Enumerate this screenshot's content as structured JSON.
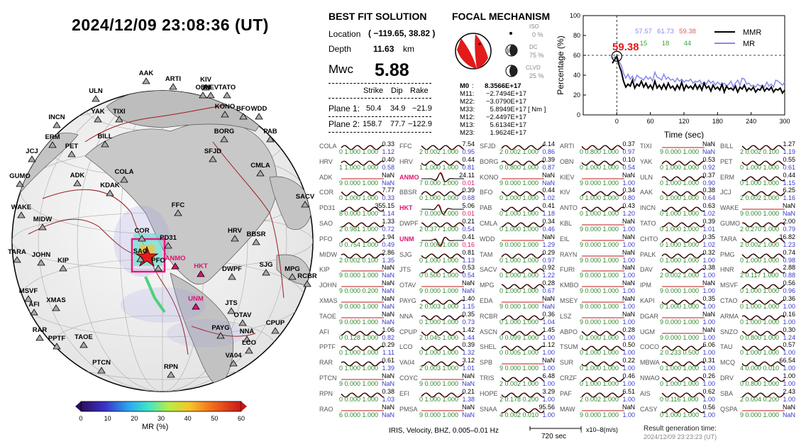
{
  "title": "2024/12/09  23:08:36 (UT)",
  "colorbar": {
    "label": "MR (%)",
    "ticks": [
      "0",
      "10",
      "20",
      "30",
      "40",
      "50",
      "60"
    ]
  },
  "stations_map": [
    "AAK",
    "ARTI",
    "KIV",
    "OBN",
    "KIEV",
    "TATO",
    "ULN",
    "KONO",
    "BFO",
    "WDD",
    "YAK",
    "TIXI",
    "INCN",
    "ERM",
    "BORG",
    "PAB",
    "BILL",
    "PET",
    "JCJ",
    "SFJD",
    "CMLA",
    "GUMO",
    "ADK",
    "COLA",
    "KDAK",
    "SACV",
    "WAKE",
    "MIDW",
    "FFC",
    "HRV",
    "BBSR",
    "COR",
    "PD31",
    "TARA",
    "JOHN",
    "KIP",
    "SAO",
    "PFO",
    "ANMO",
    "HKT",
    "DWPF",
    "SJG",
    "RCBR",
    "MPG",
    "MSVF",
    "AFI",
    "XMAS",
    "UNM",
    "JTS",
    "OTAV",
    "CPUP",
    "RAR",
    "PPTF",
    "TAOE",
    "PAYG",
    "NNA",
    "LCO",
    "VA04",
    "PTCN",
    "RPN"
  ],
  "highlight_stations": [
    "ANMO",
    "HKT",
    "UNM"
  ],
  "solution": {
    "header": "BEST FIT SOLUTION",
    "location_label": "Location",
    "location_value": "( −119.65,  38.82 )",
    "depth_label": "Depth",
    "depth_value": "11.63",
    "depth_unit": "km",
    "mw_label": "Mwc",
    "mw_value": "5.88",
    "cols": [
      "Strike",
      "Dip",
      "Rake"
    ],
    "plane1_label": "Plane 1:",
    "plane1": [
      "50.4",
      "34.9",
      "−21.9"
    ],
    "plane2_label": "Plane 2:",
    "plane2": [
      "158.7",
      "77.7",
      "−122.9"
    ]
  },
  "focal": {
    "header": "FOCAL MECHANISM",
    "iso_label": "ISO",
    "iso_val": "0 %",
    "dc_label": "DC",
    "dc_val": "75 %",
    "clvd_label": "CLVD",
    "clvd_val": "25 %",
    "m0_label": "M0",
    "m0": "8.3566E+17",
    "moments": [
      {
        "k": "M11:",
        "v": "−2.7494E+17"
      },
      {
        "k": "M22:",
        "v": "−3.0790E+17"
      },
      {
        "k": "M33:",
        "v": "5.8949E+17"
      },
      {
        "k": "M12:",
        "v": "−2.4497E+17"
      },
      {
        "k": "M13:",
        "v": "5.6134E+17"
      },
      {
        "k": "M23:",
        "v": "1.9624E+17"
      }
    ],
    "unit": "[ Nm ]"
  },
  "chart_data": {
    "type": "line",
    "xlabel": "Time (sec)",
    "ylabel": "Percentage (%)",
    "xlim": [
      -60,
      300
    ],
    "ylim": [
      0,
      100
    ],
    "xticks": [
      0,
      60,
      120,
      180,
      240,
      300
    ],
    "yticks": [
      0,
      20,
      40,
      60,
      80,
      100
    ],
    "threshold": 60,
    "peak_label": "59.38",
    "top_values": [
      {
        "v": "57.57",
        "color": "#8888ee"
      },
      {
        "v": "61.73",
        "color": "#8888ee"
      },
      {
        "v": "59.38",
        "color": "#ee5555"
      }
    ],
    "bottom_values": [
      "15",
      "18",
      "44"
    ],
    "x": [
      -8,
      0,
      4,
      8,
      12,
      16,
      20,
      24,
      28,
      32,
      36,
      40,
      44,
      48,
      52,
      56,
      60,
      64,
      68,
      72,
      76,
      80,
      84,
      88,
      92,
      96,
      100,
      104,
      108,
      112,
      116,
      120,
      124,
      128,
      132,
      136,
      140,
      144,
      148,
      152,
      156,
      160,
      164,
      168,
      172,
      176,
      180,
      184,
      188,
      192,
      196,
      200,
      204,
      208,
      212,
      216,
      220,
      224,
      228,
      232,
      236,
      240,
      244,
      248,
      252,
      256,
      260,
      264,
      268,
      272,
      276,
      280,
      284,
      288,
      292,
      296,
      300
    ],
    "series": [
      {
        "name": "MMR",
        "color": "#000000",
        "values": [
          52,
          59,
          50,
          44,
          34,
          28,
          31,
          29,
          35,
          27,
          31,
          29,
          34,
          28,
          32,
          27,
          30,
          26,
          34,
          27,
          30,
          26,
          31,
          26,
          32,
          27,
          29,
          25,
          30,
          26,
          33,
          25,
          30,
          27,
          29,
          26,
          31,
          26,
          30,
          25,
          32,
          27,
          29,
          24,
          30,
          26,
          28,
          25,
          31,
          23,
          29,
          26,
          27,
          25,
          29,
          23,
          28,
          26,
          30,
          24,
          27,
          25,
          28,
          23,
          26,
          25,
          29,
          24,
          27,
          25,
          28,
          23,
          26,
          25,
          27,
          22,
          25
        ]
      },
      {
        "name": "MR",
        "color": "#8888ee",
        "values": [
          57,
          59,
          54,
          50,
          42,
          37,
          41,
          36,
          39,
          34,
          40,
          38,
          37,
          35,
          39,
          36,
          38,
          34,
          43,
          38,
          37,
          35,
          41,
          36,
          38,
          35,
          36,
          33,
          37,
          34,
          36,
          33,
          35,
          34,
          36,
          32,
          34,
          33,
          35,
          31,
          33,
          31,
          35,
          32,
          34,
          30,
          33,
          31,
          30,
          32,
          29,
          31,
          34,
          28,
          32,
          35,
          30,
          37,
          36,
          31,
          32,
          29,
          30,
          28,
          31,
          29,
          30,
          28,
          33,
          29,
          31,
          28,
          35,
          34,
          32,
          30,
          33
        ]
      }
    ]
  },
  "traces": [
    [
      {
        "c": "COLA",
        "t": "0.33",
        "l": "0  1.000  1.000",
        "r": "1.12"
      },
      {
        "c": "HRV",
        "t": "0.40",
        "l": "1  1.000  1.000",
        "r": "0.58"
      },
      {
        "c": "ADK",
        "t": "NaN",
        "l": "9  0.000  1.000",
        "r": "NaN"
      },
      {
        "c": "COR",
        "t": "7.77",
        "l": "0  1.000  1.000",
        "r": "0.33"
      },
      {
        "c": "PD31",
        "t": "355.15",
        "l": "8  0.000  1.000",
        "r": "1.14"
      },
      {
        "c": "SAO",
        "t": "1.33",
        "l": "2  0.981  1.000",
        "r": "0.72"
      },
      {
        "c": "PFO",
        "t": "1.94",
        "l": "0  0.754  1.000",
        "r": "0.49"
      },
      {
        "c": "MIDW",
        "t": "2.86",
        "l": "2  0.002  0.100",
        "r": "1.35"
      },
      {
        "c": "KIP",
        "t": "NaN",
        "l": "9  0.000  1.000",
        "r": "NaN"
      },
      {
        "c": "JOHN",
        "t": "NaN",
        "l": "9  0.000  0.200",
        "r": "NaN"
      },
      {
        "c": "XMAS",
        "t": "NaN",
        "l": "9  0.000  1.000",
        "r": "NaN"
      },
      {
        "c": "TAOE",
        "t": "NaN",
        "l": "9  0.000  1.000",
        "r": "NaN"
      },
      {
        "c": "AFI",
        "t": "1.06",
        "l": "0  0.128  1.000",
        "r": "0.82"
      },
      {
        "c": "PPTF",
        "t": "0.29",
        "l": "0  1.000  1.000",
        "r": "1.11"
      },
      {
        "c": "RAR",
        "t": "0.61",
        "l": "0  1.000  1.000",
        "r": "1.39"
      },
      {
        "c": "PTCN",
        "t": "NaN",
        "l": "9  0.000  1.000",
        "r": "NaN"
      },
      {
        "c": "RPN",
        "t": "0.38",
        "l": "0  0.000  1.000",
        "r": "1.03"
      },
      {
        "c": "RAO",
        "t": "NaN",
        "l": "6  0.000  1.000",
        "r": "NaN"
      }
    ],
    [
      {
        "c": "FFC",
        "t": "7.54",
        "l": "2  0.002  1.000",
        "r": "0.95"
      },
      {
        "c": "HRV",
        "t": "0.44",
        "l": "1  1.000  1.000",
        "r": "0.81"
      },
      {
        "c": "ANMO",
        "t": "24.11",
        "l": "7  0.000  1.000",
        "r": "0.01"
      },
      {
        "c": "BBSR",
        "t": "0.39",
        "l": "0  1.000  1.000",
        "r": "0.68"
      },
      {
        "c": "HKT",
        "t": "5.06",
        "l": "7  0.000  1.000",
        "r": "0.01"
      },
      {
        "c": "DWPF",
        "t": "0.21",
        "l": "2  0.377  1.000",
        "r": "0.54"
      },
      {
        "c": "UNM",
        "t": "0.41",
        "l": "7  0.000  1.000",
        "r": "0.16"
      },
      {
        "c": "SJG",
        "t": "0.81",
        "l": "0  1.000  1.000",
        "r": "1.13"
      },
      {
        "c": "JTS",
        "t": "0.53",
        "l": "0  0.500  1.000",
        "r": "0.54"
      },
      {
        "c": "OTAV",
        "t": "NaN",
        "l": "9  0.000  1.000",
        "r": "NaN"
      },
      {
        "c": "PAYG",
        "t": "1.40",
        "l": "2  0.003  1.000",
        "r": "1.15"
      },
      {
        "c": "NNA",
        "t": "0.35",
        "l": "0  1.000  1.000",
        "r": "0.73"
      },
      {
        "c": "CPUP",
        "t": "1.42",
        "l": "2  0.045  1.000",
        "r": "1.44"
      },
      {
        "c": "LCO",
        "t": "0.39",
        "l": "0  1.000  1.000",
        "r": "1.32"
      },
      {
        "c": "VA04",
        "t": "3.12",
        "l": "2  0.003  1.000",
        "r": "1.01"
      },
      {
        "c": "COYC",
        "t": "NaN",
        "l": "9  0.000  1.000",
        "r": "NaN"
      },
      {
        "c": "EFI",
        "t": "0.21",
        "l": "0  1.000  1.000",
        "r": "1.38"
      },
      {
        "c": "PMSA",
        "t": "NaN",
        "l": "9  0.000  1.000",
        "r": "NaN"
      }
    ],
    [
      {
        "c": "SFJD",
        "t": "4.14",
        "l": "2  0.002  1.000",
        "r": "0.86"
      },
      {
        "c": "BORG",
        "t": "0.39",
        "l": "0  0.800  1.000",
        "r": "0.87"
      },
      {
        "c": "KONO",
        "t": "NaN",
        "l": "9  0.000  1.000",
        "r": "NaN"
      },
      {
        "c": "BFO",
        "t": "0.44",
        "l": "0  1.000  1.000",
        "r": "1.02"
      },
      {
        "c": "PAB",
        "t": "0.41",
        "l": "0  1.000  1.000",
        "r": "1.18"
      },
      {
        "c": "CMLA",
        "t": "0.34",
        "l": "0  1.000  1.000",
        "r": "0.46"
      },
      {
        "c": "WDD",
        "t": "NaN",
        "l": "9  0.000  1.000",
        "r": "1.29"
      },
      {
        "c": "TAM",
        "t": "0.29",
        "l": "0  1.000  1.000",
        "r": "0.97"
      },
      {
        "c": "SACV",
        "t": "0.92",
        "l": "0  1.000  1.000",
        "r": "1.22"
      },
      {
        "c": "MPG",
        "t": "0.28",
        "l": "0  1.000  1.000",
        "r": "0.67"
      },
      {
        "c": "EDA",
        "t": "NaN",
        "l": "9  0.000  1.000",
        "r": "NaN"
      },
      {
        "c": "RCBR",
        "t": "0.36",
        "l": "0  1.000  1.000",
        "r": "1.04"
      },
      {
        "c": "ASCN",
        "t": "1.45",
        "l": "0  0.099  1.000",
        "r": "1.00"
      },
      {
        "c": "SHEL",
        "t": "1.12",
        "l": "0  0.005  1.000",
        "r": "1.00"
      },
      {
        "c": "SPB",
        "t": "NaN",
        "l": "9  0.000  1.000",
        "r": "1.00"
      },
      {
        "c": "TRIS",
        "t": "6.48",
        "l": "2  0.002  1.000",
        "r": "1.00"
      },
      {
        "c": "HOPE",
        "t": "3.29",
        "l": "2  0.178  0.200",
        "r": "1.00"
      },
      {
        "c": "SNAA",
        "t": "95.56",
        "l": "4  0.002  0.010",
        "r": "1.00"
      }
    ],
    [
      {
        "c": "ARTI",
        "t": "0.37",
        "l": "0  0.800  1.000",
        "r": "0.97"
      },
      {
        "c": "OBN",
        "t": "0.10",
        "l": "0  1.000  1.000",
        "r": "0.54"
      },
      {
        "c": "KIEV",
        "t": "NaN",
        "l": "9  0.000  1.000",
        "r": "1.00"
      },
      {
        "c": "KIV",
        "t": "0.34",
        "l": "0  1.000  1.000",
        "r": "0.80"
      },
      {
        "c": "ANTO",
        "t": "0.43",
        "l": "0  1.000  1.000",
        "r": "1.20"
      },
      {
        "c": "KBL",
        "t": "NaN",
        "l": "9  0.000  1.000",
        "r": "1.00"
      },
      {
        "c": "EIL",
        "t": "NaN",
        "l": "9  0.000  1.000",
        "r": "1.00"
      },
      {
        "c": "RAYN",
        "t": "NaN",
        "l": "9  0.000  1.000",
        "r": "1.00"
      },
      {
        "c": "FURI",
        "t": "NaN",
        "l": "9  0.000  1.000",
        "r": "1.00"
      },
      {
        "c": "KMBO",
        "t": "NaN",
        "l": "9  0.000  1.000",
        "r": "1.00"
      },
      {
        "c": "MSEY",
        "t": "NaN",
        "l": "9  0.000  1.000",
        "r": "1.00"
      },
      {
        "c": "LSZ",
        "t": "NaN",
        "l": "9  0.000  1.000",
        "r": "1.00"
      },
      {
        "c": "ABPO",
        "t": "0.28",
        "l": "0  1.000  1.000",
        "r": "1.00"
      },
      {
        "c": "TSUM",
        "t": "0.50",
        "l": "0  1.000  1.000",
        "r": "1.00"
      },
      {
        "c": "SUR",
        "t": "0.22",
        "l": "0  1.000  1.000",
        "r": "1.00"
      },
      {
        "c": "CRZF",
        "t": "0.46",
        "l": "0  1.000  1.000",
        "r": "1.00"
      },
      {
        "c": "PAF",
        "t": "6.51",
        "l": "2  0.002  1.000",
        "r": "1.00"
      },
      {
        "c": "MAW",
        "t": "NaN",
        "l": "9  0.000  1.000",
        "r": "1.00"
      }
    ],
    [
      {
        "c": "TIXI",
        "t": "NaN",
        "l": "9  0.000  1.000",
        "r": "NaN"
      },
      {
        "c": "YAK",
        "t": "0.53",
        "l": "0  1.000  1.000",
        "r": "0.92"
      },
      {
        "c": "ULN",
        "t": "0.37",
        "l": "0  1.000  1.000",
        "r": "0.90"
      },
      {
        "c": "AAK",
        "t": "0.38",
        "l": "0  1.000  1.000",
        "r": "0.64"
      },
      {
        "c": "INCN",
        "t": "0.63",
        "l": "0  1.000  1.000",
        "r": "1.02"
      },
      {
        "c": "TATO",
        "t": "0.39",
        "l": "0  1.000  1.000",
        "r": "1.01"
      },
      {
        "c": "CHTO",
        "t": "0.35",
        "l": "0  1.000  1.000",
        "r": "1.02"
      },
      {
        "c": "PALK",
        "t": "0.32",
        "l": "0  1.000  1.000",
        "r": "1.00"
      },
      {
        "c": "DAV",
        "t": "3.38",
        "l": "2  0.002  1.000",
        "r": "1.00"
      },
      {
        "c": "IPM",
        "t": "NaN",
        "l": "9  0.000  1.000",
        "r": "1.00"
      },
      {
        "c": "KAPI",
        "t": "0.35",
        "l": "0  1.000  1.000",
        "r": "1.00"
      },
      {
        "c": "DGAR",
        "t": "NaN",
        "l": "9  0.000  1.000",
        "r": "1.00"
      },
      {
        "c": "UGM",
        "t": "NaN",
        "l": "9  0.000  1.000",
        "r": "1.00"
      },
      {
        "c": "COCO",
        "t": "6.06",
        "l": "2  0.233  0.500",
        "r": "1.00"
      },
      {
        "c": "MBWA",
        "t": "0.31",
        "l": "0  1.000  1.000",
        "r": "1.00"
      },
      {
        "c": "NWAO",
        "t": "0.26",
        "l": "0  1.000  1.000",
        "r": "1.00"
      },
      {
        "c": "AIS",
        "t": "0.62",
        "l": "0  0.116  1.000",
        "r": "1.00"
      },
      {
        "c": "CASY",
        "t": "0.56",
        "l": "0  1.000  1.000",
        "r": "1.00"
      }
    ],
    [
      {
        "c": "BILL",
        "t": "1.27",
        "l": "2  0.002  0.100",
        "r": "1.19"
      },
      {
        "c": "PET",
        "t": "0.55",
        "l": "0  1.000  1.000",
        "r": "0.61"
      },
      {
        "c": "ERM",
        "t": "0.44",
        "l": "0  1.000  1.000",
        "r": "1.15"
      },
      {
        "c": "JCJ",
        "t": "6.25",
        "l": "2  0.002  1.000",
        "r": "1.16"
      },
      {
        "c": "WAKE",
        "t": "NaN",
        "l": "9  0.000  1.000",
        "r": "NaN"
      },
      {
        "c": "GUMO",
        "t": "2.00",
        "l": "2  0.270  1.000",
        "r": "0.79"
      },
      {
        "c": "TARA",
        "t": "16.82",
        "l": "2  0.002  1.000",
        "r": "1.23"
      },
      {
        "c": "PMG",
        "t": "0.74",
        "l": "0  1.000  1.000",
        "r": "0.98"
      },
      {
        "c": "HNR",
        "t": "2.88",
        "l": "2  0.117  1.000",
        "r": "0.88"
      },
      {
        "c": "MSVF",
        "t": "0.56",
        "l": "0  1.000  1.000",
        "r": "0.96"
      },
      {
        "c": "CTAO",
        "t": "0.36",
        "l": "0  1.000  1.000",
        "r": "1.00"
      },
      {
        "c": "ARMA",
        "t": "0.16",
        "l": "0  1.000  1.000",
        "r": "1.00"
      },
      {
        "c": "SNZO",
        "t": "0.30",
        "l": "0  0.800  1.000",
        "r": "1.24"
      },
      {
        "c": "TAU",
        "t": "0.57",
        "l": "0  1.000  1.000",
        "r": "1.00"
      },
      {
        "c": "MCQ",
        "t": "66.54",
        "l": "4  0.000  0.010",
        "r": "1.00"
      },
      {
        "c": "DRV",
        "t": "1.00",
        "l": "0  0.800  1.000",
        "r": "1.00"
      },
      {
        "c": "SBA",
        "t": "2.43",
        "l": "2  0.004  0.200",
        "r": "1.00"
      },
      {
        "c": "QSPA",
        "t": "NaN",
        "l": "9  0.000  1.000",
        "r": "NaN"
      }
    ]
  ],
  "footer": {
    "info": "IRIS, Velocity,   BHZ, 0.005–0.01 Hz",
    "scale_label": "720 sec",
    "amp_label": "x10–8(m/s)",
    "gen_label": "Result generation time:",
    "gen_time": "2024/12/09 23:23:23 (UT)"
  }
}
